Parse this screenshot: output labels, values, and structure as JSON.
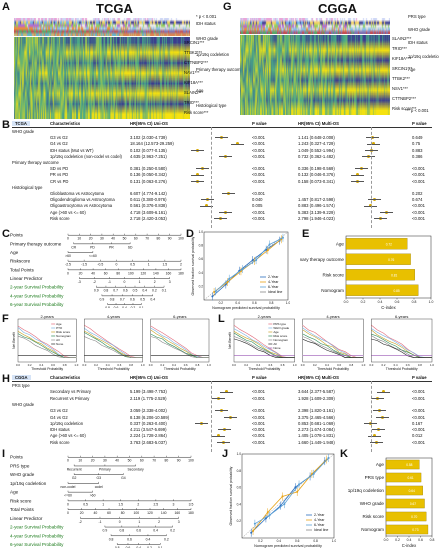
{
  "panels": {
    "A": {
      "letter": "A",
      "title": "TCGA"
    },
    "B": {
      "letter": "B"
    },
    "C": {
      "letter": "C"
    },
    "D": {
      "letter": "D"
    },
    "E": {
      "letter": "E"
    },
    "F": {
      "letter": "F"
    },
    "G": {
      "letter": "G",
      "title": "CGGA"
    },
    "H": {
      "letter": "H"
    },
    "I": {
      "letter": "I"
    },
    "J": {
      "letter": "J"
    },
    "K": {
      "letter": "K"
    },
    "L": {
      "letter": "L"
    }
  },
  "heatmapA": {
    "genes": [
      "SRCIN1***",
      "TTBK2***",
      "CTTNBP2***",
      "NAV1***",
      "KIF18A***",
      "SLAIN2***",
      "TRIO***",
      "Risk score***"
    ],
    "pnote": "* p < 0.001",
    "legend": [
      "IDH status",
      "WHO grade",
      "1p/19q codeletion",
      "Primary therapy outcome",
      "Age",
      "Histological type"
    ]
  },
  "heatmapG": {
    "genes": [
      "SLAIN2***",
      "TRIO***",
      "KIF18A***",
      "SRCIN1***",
      "TTBK2***",
      "NSV1***",
      "CTTNBP2***",
      "Risk score***"
    ],
    "pnote": "*** p < 0.001",
    "legend": [
      "PRS type",
      "WHO grade",
      "IDH status",
      "1p/19q codeletion",
      "Age"
    ]
  },
  "tableB": {
    "headers": [
      "TCGA",
      "Characteristics",
      "HR(95% CI) Uni-OS",
      "P value",
      "HR(95% CI) Multi-OS",
      "P value"
    ],
    "rows": [
      [
        "WHO grade",
        "",
        "",
        "",
        "",
        ""
      ],
      [
        "",
        "G3 vs G2",
        "3.102 (2.030-4.739)",
        "<0.001",
        "1.141 (0.648-2.008)",
        "0.649"
      ],
      [
        "",
        "G4 vs G2",
        "18.164 (12.573-29.259)",
        "<0.001",
        "1.243 (0.327-4.729)",
        "0.75"
      ],
      [
        "",
        "IDH status (Mut vs WT)",
        "0.102 (0.077-0.135)",
        "<0.001",
        "1.049 (0.552-1.994)",
        "0.883"
      ],
      [
        "",
        "1p/19q codeletion (non-codel vs codel)",
        "4.635 (2.963-7.251)",
        "<0.001",
        "0.732 (0.362-1.482)",
        "0.386"
      ],
      [
        "Primary therapy outcome",
        "",
        "",
        "",
        "",
        ""
      ],
      [
        "",
        "SD vs PD",
        "0.381 (0.250-0.580)",
        "<0.001",
        "0.336 (0.198-0.569)",
        "<0.001"
      ],
      [
        "",
        "PR vs PD",
        "0.136 (0.050-0.342)",
        "<0.001",
        "0.132 (0.046-0.376)",
        "<0.001"
      ],
      [
        "",
        "CR vs PD",
        "0.131 (0.063-0.276)",
        "<0.001",
        "0.158 (0.073-0.341)",
        "<0.001"
      ],
      [
        "Histological type",
        "",
        "",
        "",
        "",
        ""
      ],
      [
        "",
        "Glioblastoma vs Astrocytoma",
        "6.607 (4.774-9.142)",
        "<0.001",
        "",
        "0.202"
      ],
      [
        "",
        "Oligodendroglioma vs Astrocytoma",
        "0.611 (0.380-0.976)",
        "0.040",
        "1.457 (0.817-2.598)",
        "0.674"
      ],
      [
        "",
        "Oligoastrocytoma vs Astrocytoma",
        "0.561 (0.376-0.838)",
        "0.005",
        "0.883 (0.496-1.574)",
        "<0.001"
      ],
      [
        "",
        "Age (>60 vs <= 60)",
        "4.718 (3.609-6.161)",
        "<0.001",
        "5.383 (3.139-9.229)",
        "<0.001"
      ],
      [
        "",
        "Risk score",
        "2.718 (2.420-3.053)",
        "<0.001",
        "2.798 (1.946-4.023)",
        "<0.001"
      ]
    ]
  },
  "tableH": {
    "headers": [
      "CGGA",
      "Characteristics",
      "HR(95% CI) Uni-OS",
      "P value",
      "HR(95% CI) Multi-OS",
      "P value"
    ],
    "rows": [
      [
        "PRS type",
        "",
        "",
        "",
        "",
        ""
      ],
      [
        "",
        "Secondary vs Primary",
        "5.199 (3.498-7.753)",
        "<0.001",
        "3.644 (2.377-5.587)",
        "<0.001"
      ],
      [
        "",
        "Recurrent vs Primary",
        "2.119 (1.775-2.529)",
        "<0.001",
        "1.928 (1.609-2.309)",
        "<0.001"
      ],
      [
        "WHO grade",
        "",
        "",
        "",
        "",
        ""
      ],
      [
        "",
        "G3 vs G2",
        "3.059 (2.338-4.002)",
        "<0.001",
        "2.398 (1.820-3.161)",
        "<0.001"
      ],
      [
        "",
        "G4 vs G2",
        "8.138 (6.206-10.589)",
        "<0.001",
        "3.375 (2.465-4.566)",
        "<0.001"
      ],
      [
        "",
        "1p/19q codeletion",
        "0.337 (0.263-0.400)",
        "<0.001",
        "0.853 (0.681-1.069)",
        "0.167"
      ],
      [
        "",
        "IDH status",
        "4.211 (3.547-5.699)",
        "<0.001",
        "2.273 (1.674-3.084)",
        "<0.001"
      ],
      [
        "",
        "Age (>60 vs <= 60)",
        "2.224 (1.728-2.864)",
        "<0.001",
        "1.405 (1.078-1.831)",
        "0.012"
      ],
      [
        "",
        "Risk score",
        "3.763 (2.683-5.037)",
        "<0.001",
        "1.660 (1.449-1.948)",
        "<0.001"
      ]
    ]
  },
  "nomogramC": {
    "rows": [
      "Points",
      "Primary therapy outcome",
      "Age",
      "Riskscore",
      "Total Points",
      "Linear Predictor",
      "2-year Survival Probability",
      "4-year Survival Probability",
      "6-year Survival Probability"
    ],
    "ticks_points": [
      "0",
      "10",
      "20",
      "30",
      "40",
      "50",
      "60",
      "70",
      "80",
      "90",
      "100"
    ],
    "outcome_labels": [
      "CR",
      "PD",
      "PR",
      "SD"
    ],
    "age_labels": [
      ">60",
      "<=60"
    ],
    "risk_ticks": [
      "-2.5",
      "-1.5",
      "-0.5",
      "0",
      "0.5",
      "1",
      "1.5",
      "2"
    ],
    "total_ticks": [
      "0",
      "20",
      "40",
      "60",
      "80",
      "100",
      "120",
      "140",
      "160",
      "180"
    ],
    "lp_ticks": [
      "-3",
      "-2",
      "-1",
      "0",
      "1",
      "2",
      "3"
    ],
    "prob2": [
      "0.9",
      "0.8",
      "0.7",
      "0.6",
      "0.5",
      "0.4",
      "0.2",
      "0.1"
    ],
    "prob4": [
      "0.9",
      "0.8",
      "0.7",
      "0.6",
      "0.5",
      "0.4"
    ],
    "prob6": [
      "0.8",
      "0.6",
      "0.4",
      "0.2",
      "0.1"
    ]
  },
  "nomogramI": {
    "rows": [
      "Points",
      "PRS type",
      "WHO grade",
      "1p/19q codeletion",
      "Age",
      "Risk score",
      "Total Points",
      "Linear Predictor",
      "2-year Survival Probability",
      "4-year Survival Probability",
      "6-year Survival Probability"
    ],
    "prs_labels": [
      "Recurrent",
      "Primary",
      "Secondary"
    ],
    "who_labels": [
      "G2",
      "G3",
      "G4"
    ],
    "codel_labels": [
      "non-codel",
      "codel"
    ],
    "age_labels": [
      "<=60",
      ">60"
    ],
    "prob2": [
      "0.9",
      "0.8",
      "0.6",
      "0.4",
      "0.2"
    ],
    "prob4": [
      "0.8",
      "0.6",
      "0.4",
      "0.2"
    ],
    "prob6": [
      "0.8",
      "0.6",
      "0.4",
      "0.2",
      "0.1"
    ]
  },
  "calibD": {
    "xlabel": "Nomogram predicted survival probability",
    "ylabel": "Observed fraction survival probability",
    "legend": [
      "2-Year",
      "4-Year",
      "6-Year",
      "Ideal line"
    ]
  },
  "calibJ": {
    "xlabel": "Nomogram predicted survival probability",
    "ylabel": "Observed fraction survival probability",
    "legend": [
      "2-Year",
      "4-Year",
      "6-Year",
      "Ideal line"
    ]
  },
  "chart_data": [
    {
      "type": "bar",
      "panel": "E",
      "categories": [
        "Age",
        "Primary therapy outcome",
        "Risk score",
        "Nomogram"
      ],
      "values": [
        0.72,
        0.76,
        0.81,
        0.85
      ],
      "xlabel": "C-index",
      "xlim": [
        0,
        1.0
      ],
      "bar_color": "#e8c000",
      "xticks": [
        "0.0",
        "0.2",
        "0.4",
        "0.6",
        "0.8",
        "1.0"
      ]
    },
    {
      "type": "bar",
      "panel": "K",
      "categories": [
        "Age",
        "PRS type",
        "1p/19q codeletion",
        "WHO grade",
        "Risk score",
        "Nomogram"
      ],
      "values": [
        0.58,
        0.61,
        0.64,
        0.67,
        0.7,
        0.73
      ],
      "xlabel": "C-index",
      "xlim": [
        0,
        0.8
      ],
      "bar_color": "#e8c000",
      "xticks": [
        "0.0",
        "0.2",
        "0.4",
        "0.6",
        "0.8"
      ]
    }
  ],
  "dcaF": {
    "titles": [
      "2-years",
      "4-years",
      "6-years"
    ],
    "xlabel": "Threshold Probability",
    "ylabel": "Net Benefit",
    "legend": [
      "Age",
      "PTO",
      "Risk score",
      "Nomogram",
      "All",
      "None"
    ]
  },
  "dcaL": {
    "titles": [
      "2-years",
      "4-years",
      "6-years"
    ],
    "xlabel": "Threshold Probability",
    "ylabel": "Net Benefit",
    "legend": [
      "PRS type",
      "WHO grade",
      "Age",
      "Risk score",
      "Nomogram",
      "All",
      "None"
    ]
  },
  "colors": {
    "heat_high": "#f6e20f",
    "heat_low": "#3b3b8f",
    "heat_mid": "#47a98a",
    "pink": "#e9a6d9",
    "forest": "#d7a900"
  }
}
